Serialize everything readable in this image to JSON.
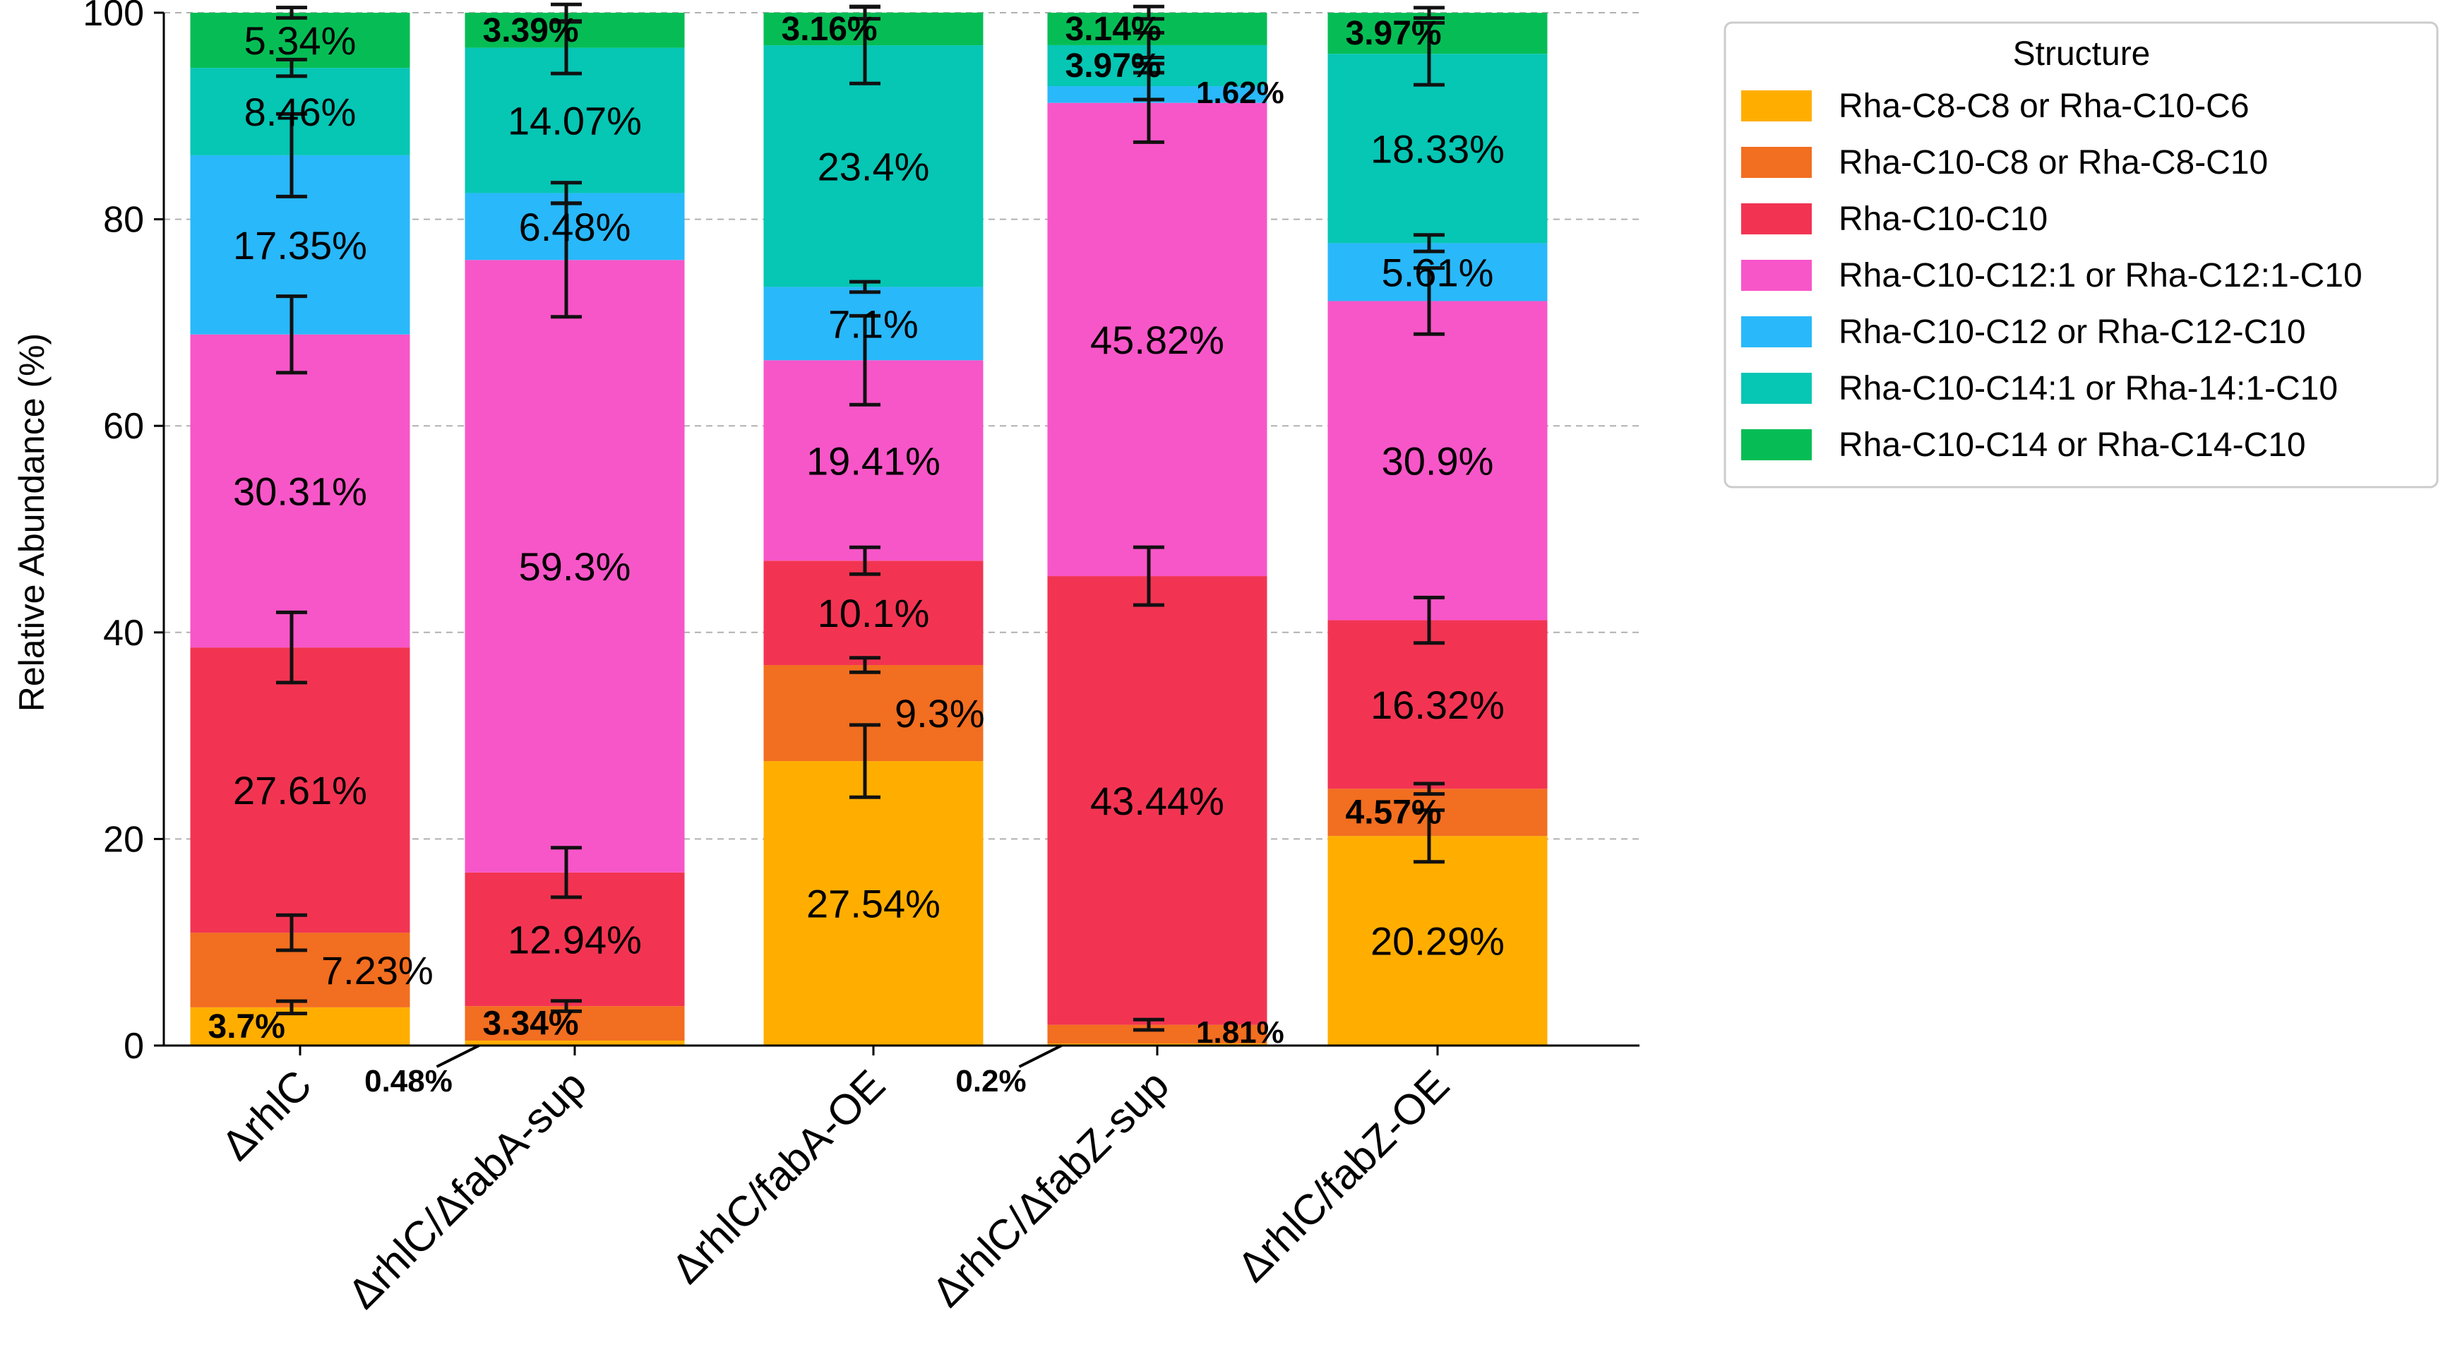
{
  "chart_data": {
    "type": "bar",
    "stacked": true,
    "ylabel": "Relative Abundance (%)",
    "xlabel": "",
    "ylim": [
      0,
      100
    ],
    "yticks": [
      0,
      20,
      40,
      60,
      80,
      100
    ],
    "grid": true,
    "legend_position": "top-right",
    "legend_title": "Structure",
    "categories": [
      "ΔrhlC",
      "ΔrhlC/ΔfabA-sup",
      "ΔrhlC/fabA-OE",
      "ΔrhlC/ΔfabZ-sup",
      "ΔrhlC/fabZ-OE"
    ],
    "series": [
      {
        "name": "Rha-C8-C8 or Rha-C10-C6",
        "color": "#FFAE00",
        "values": [
          3.7,
          0.48,
          27.54,
          0.2,
          20.29
        ],
        "errors": [
          0.6,
          0,
          3.5,
          0,
          2.5
        ],
        "labels": [
          "3.7%",
          "0.48%",
          "27.54%",
          "0.2%",
          "20.29%"
        ]
      },
      {
        "name": "Rha-C10-C8 or Rha-C8-C10",
        "color": "#F26E20",
        "values": [
          7.23,
          3.34,
          9.3,
          1.81,
          4.57
        ],
        "errors": [
          1.7,
          0.5,
          0.7,
          0.5,
          0.5
        ],
        "labels": [
          "7.23%",
          "3.34%",
          "9.3%",
          "1.81%",
          "4.57%"
        ]
      },
      {
        "name": "Rha-C10-C10",
        "color": "#F23452",
        "values": [
          27.61,
          12.94,
          10.1,
          43.44,
          16.32
        ],
        "errors": [
          3.4,
          2.4,
          1.3,
          2.8,
          2.2
        ],
        "labels": [
          "27.61%",
          "12.94%",
          "10.1%",
          "43.44%",
          "16.32%"
        ]
      },
      {
        "name": "Rha-C10-C12:1 or Rha-C12:1-C10",
        "color": "#F756C8",
        "values": [
          30.31,
          59.3,
          19.41,
          45.82,
          30.9
        ],
        "errors": [
          3.7,
          5.5,
          4.3,
          3.8,
          3.2
        ],
        "labels": [
          "30.31%",
          "59.3%",
          "19.41%",
          "45.82%",
          "30.9%"
        ]
      },
      {
        "name": "Rha-C10-C12 or Rha-C12-C10",
        "color": "#29B8FA",
        "values": [
          17.35,
          6.48,
          7.1,
          1.62,
          5.61
        ],
        "errors": [
          4.0,
          1.0,
          0.5,
          1.3,
          0.8
        ],
        "labels": [
          "17.35%",
          "6.48%",
          "7.1%",
          "1.62%",
          "5.61%"
        ]
      },
      {
        "name": "Rha-C10-C14:1 or Rha-14:1-C10",
        "color": "#06C6B4",
        "values": [
          8.46,
          14.07,
          23.4,
          3.97,
          18.33
        ],
        "errors": [
          0.8,
          2.5,
          3.7,
          1.2,
          3.0
        ],
        "labels": [
          "8.46%",
          "14.07%",
          "23.4%",
          "3.97%",
          "18.33%"
        ]
      },
      {
        "name": "Rha-C10-C14 or Rha-C14-C10",
        "color": "#06BD55",
        "values": [
          5.34,
          3.39,
          3.16,
          3.14,
          3.97
        ],
        "errors": [
          0.5,
          0.8,
          0.6,
          0.6,
          0.5
        ],
        "labels": [
          "5.34%",
          "3.39%",
          "3.16%",
          "3.14%",
          "3.97%"
        ]
      }
    ]
  }
}
